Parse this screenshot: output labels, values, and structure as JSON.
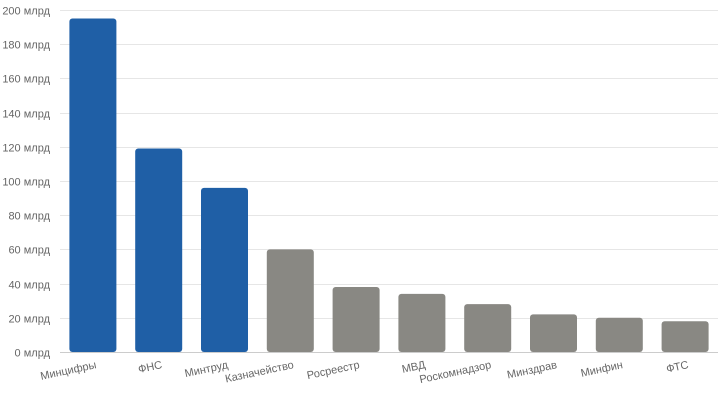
{
  "chart_data": {
    "type": "bar",
    "title": "",
    "xlabel": "",
    "ylabel": "",
    "categories": [
      "Минцифры",
      "ФНС",
      "Минтруд",
      "Казначейство",
      "Росреестр",
      "МВД",
      "Роскомнадзор",
      "Минздрав",
      "Минфин",
      "ФТС"
    ],
    "values": [
      195,
      119,
      96,
      60,
      38,
      34,
      28,
      22,
      20,
      18
    ],
    "ylim": [
      0,
      200
    ],
    "yticks": [
      0,
      20,
      40,
      60,
      80,
      100,
      120,
      140,
      160,
      180,
      200
    ],
    "ytick_suffix": " млрд",
    "grid": true,
    "legend": "none",
    "colors": {
      "highlight": "#1f5fa6",
      "other": "#898883",
      "grid": "#e6e6e6",
      "text": "#666666"
    },
    "highlight_count": 3
  }
}
